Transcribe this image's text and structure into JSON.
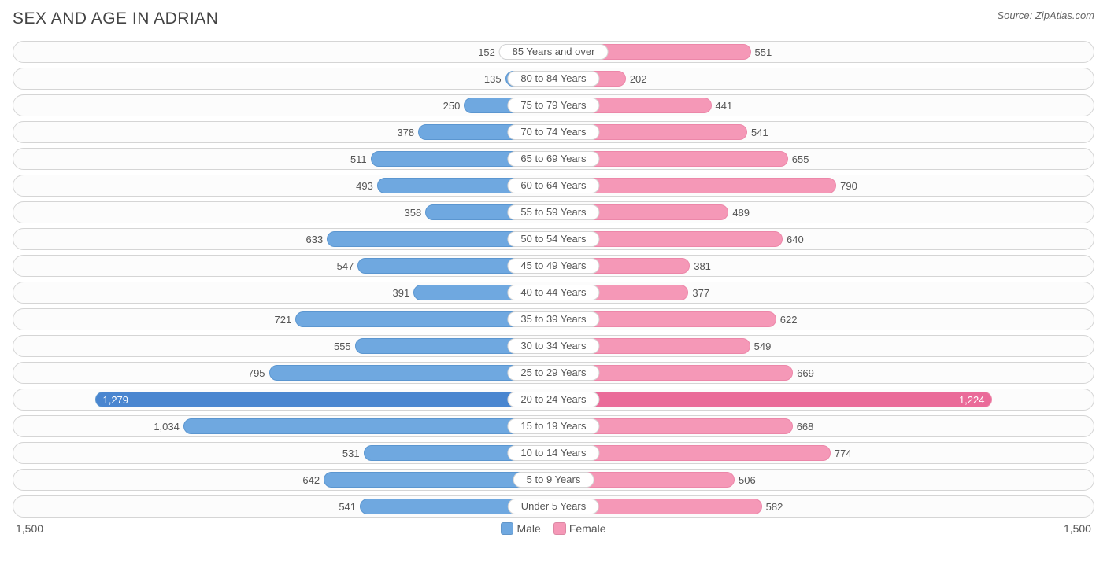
{
  "title": "SEX AND AGE IN ADRIAN",
  "source": "Source: ZipAtlas.com",
  "chart": {
    "type": "population-pyramid",
    "axis_max": 1500,
    "axis_label": "1,500",
    "male_color": "#6fa8e0",
    "male_border": "#5b96d0",
    "male_highlight": "#4a86d0",
    "female_color": "#f598b7",
    "female_border": "#ec87a9",
    "female_highlight": "#ea6b99",
    "row_border": "#d5d5d5",
    "row_bg": "#fcfcfc",
    "text_color": "#555555",
    "legend": {
      "male": "Male",
      "female": "Female"
    },
    "rows": [
      {
        "label": "85 Years and over",
        "male": 152,
        "female": 551
      },
      {
        "label": "80 to 84 Years",
        "male": 135,
        "female": 202
      },
      {
        "label": "75 to 79 Years",
        "male": 250,
        "female": 441
      },
      {
        "label": "70 to 74 Years",
        "male": 378,
        "female": 541
      },
      {
        "label": "65 to 69 Years",
        "male": 511,
        "female": 655
      },
      {
        "label": "60 to 64 Years",
        "male": 493,
        "female": 790
      },
      {
        "label": "55 to 59 Years",
        "male": 358,
        "female": 489
      },
      {
        "label": "50 to 54 Years",
        "male": 633,
        "female": 640
      },
      {
        "label": "45 to 49 Years",
        "male": 547,
        "female": 381
      },
      {
        "label": "40 to 44 Years",
        "male": 391,
        "female": 377
      },
      {
        "label": "35 to 39 Years",
        "male": 721,
        "female": 622
      },
      {
        "label": "30 to 34 Years",
        "male": 555,
        "female": 549
      },
      {
        "label": "25 to 29 Years",
        "male": 795,
        "female": 669
      },
      {
        "label": "20 to 24 Years",
        "male": 1279,
        "female": 1224,
        "male_display": "1,279",
        "female_display": "1,224",
        "highlight": true
      },
      {
        "label": "15 to 19 Years",
        "male": 1034,
        "female": 668,
        "male_display": "1,034"
      },
      {
        "label": "10 to 14 Years",
        "male": 531,
        "female": 774
      },
      {
        "label": "5 to 9 Years",
        "male": 642,
        "female": 506
      },
      {
        "label": "Under 5 Years",
        "male": 541,
        "female": 582
      }
    ]
  }
}
